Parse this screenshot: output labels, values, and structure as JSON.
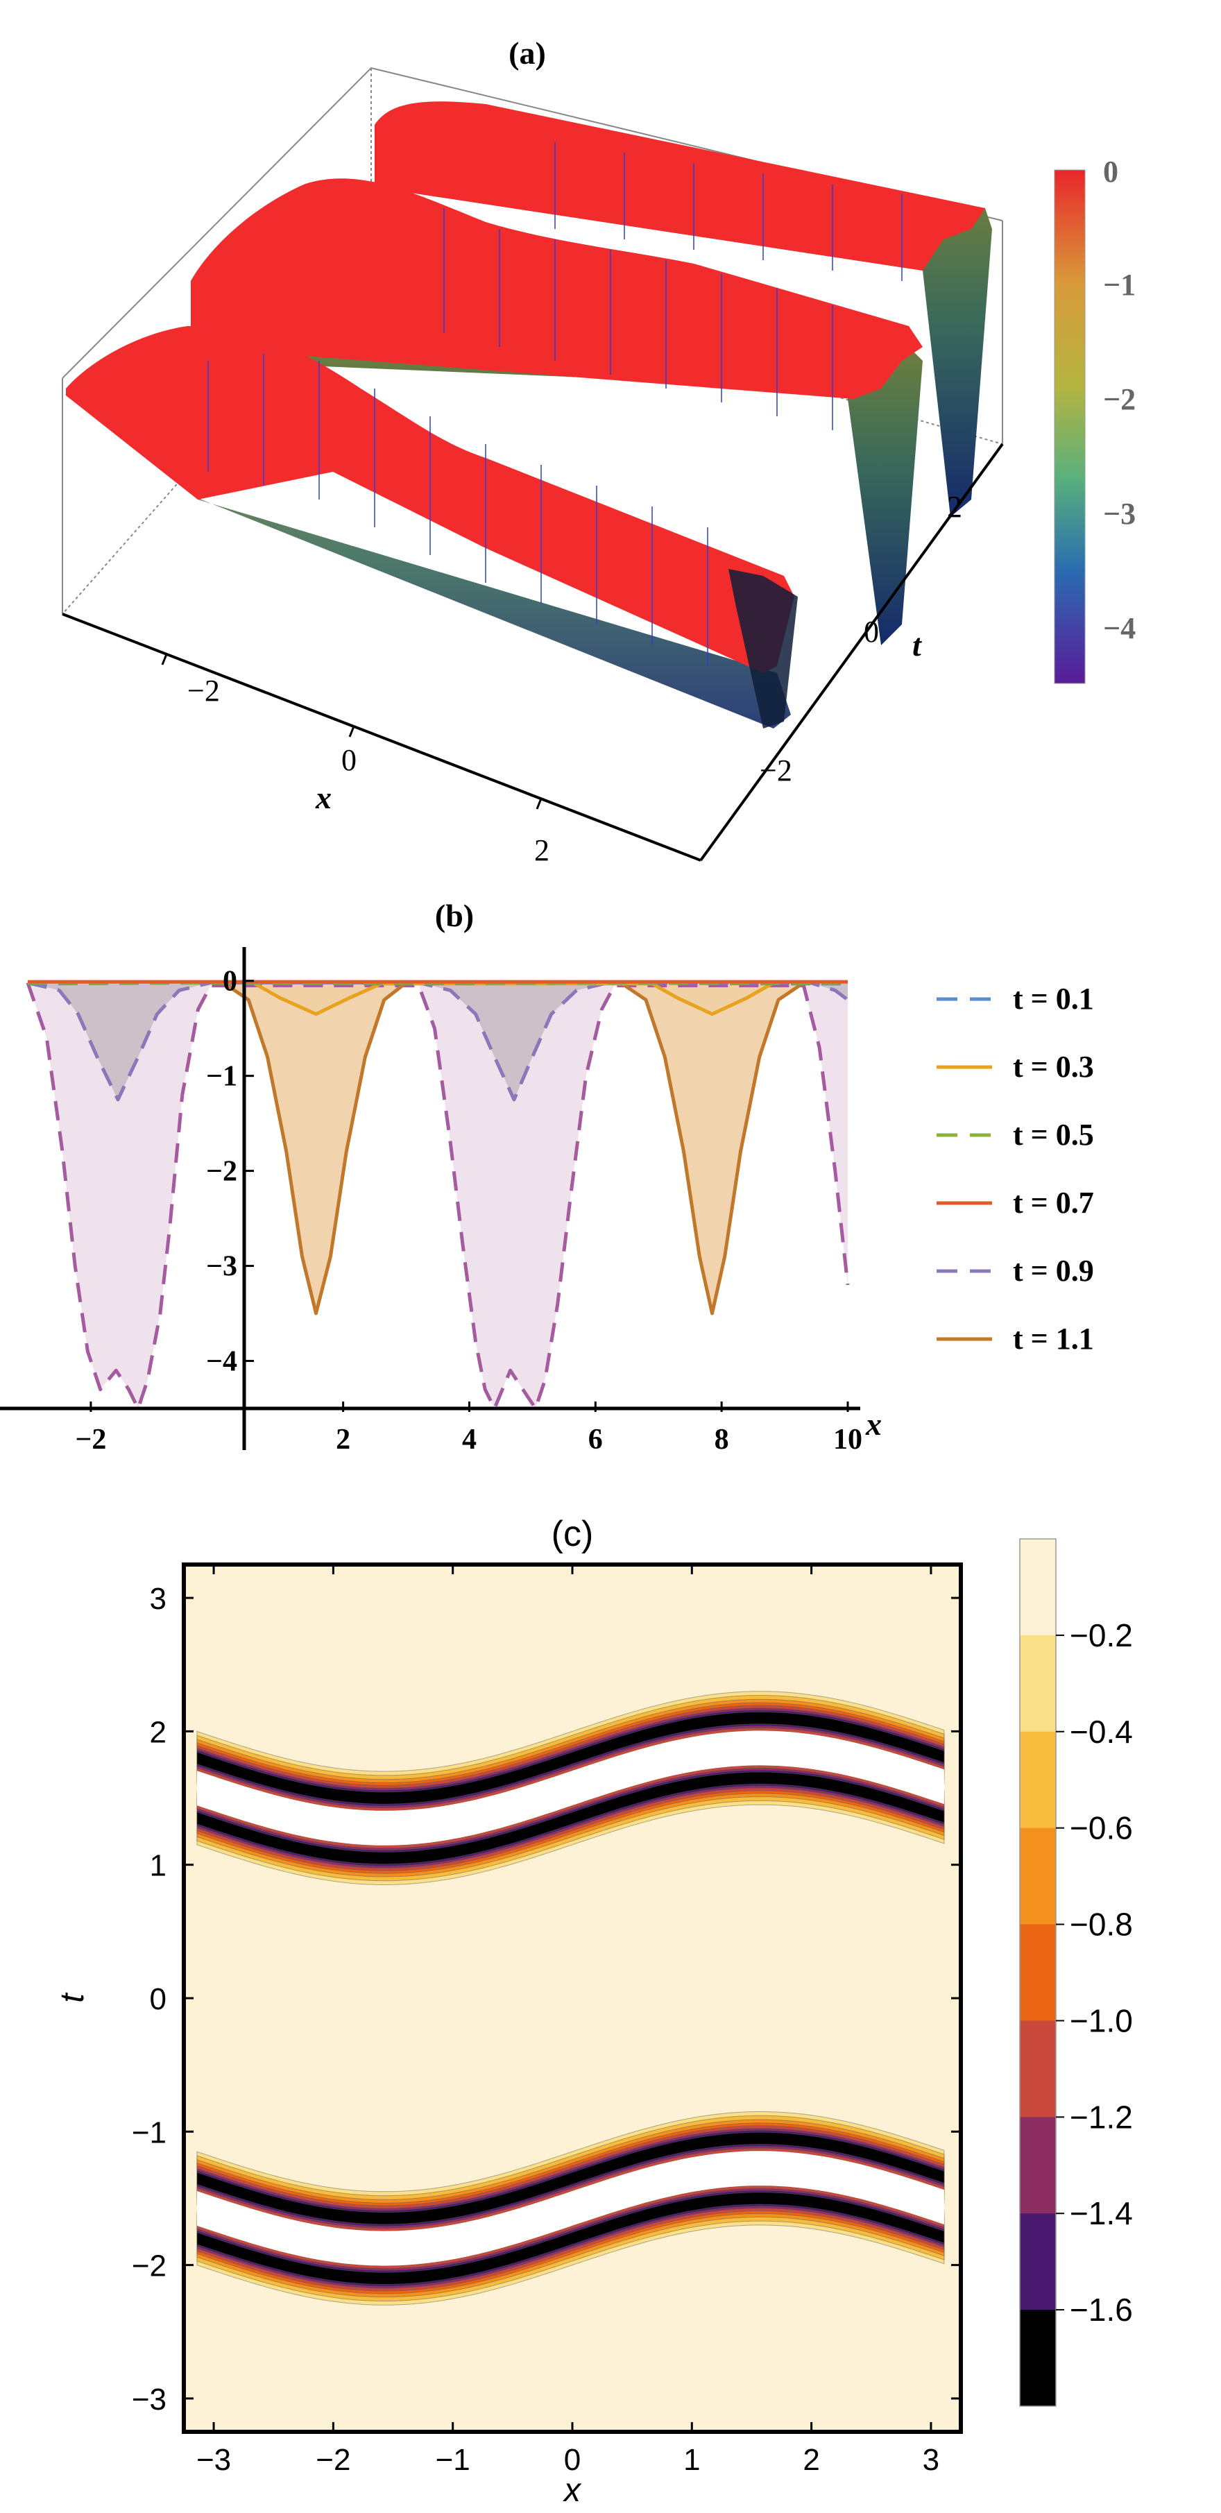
{
  "panels": {
    "a": {
      "label": "(a)",
      "xlabel": "x",
      "tlabel": "t",
      "x_ticks": [
        "−2",
        "0",
        "2"
      ],
      "t_ticks": [
        "2",
        "0",
        "−2"
      ],
      "colorbar_ticks": [
        "0",
        "−1",
        "−2",
        "−3",
        "−4"
      ]
    },
    "b": {
      "label": "(b)",
      "xlabel": "x"
    },
    "c": {
      "label": "(c)",
      "xlabel": "x",
      "ylabel": "t"
    }
  },
  "colors": {
    "surface_top": "#f22c2c",
    "surface_mid": "#7a7a32",
    "surface_low": "#1c6a6a",
    "t01": "#5b8ccc",
    "t03": "#e8a21e",
    "t05": "#8bb33c",
    "t07": "#e2572c",
    "t09": "#8a78bb",
    "t11": "#c2782a",
    "fill_orange": "#efcfa4",
    "fill_purple": "#ecdde9",
    "fill_grey": "#cabcc4",
    "dashed_magenta": "#a55b9f",
    "contour_bg": "#fdf2d5"
  },
  "chart_data": [
    {
      "type": "surface",
      "title": "(a)",
      "xlabel": "x",
      "ylabel": "t",
      "zlabel": "",
      "x_range": [
        -3.14,
        3.14
      ],
      "t_range": [
        -3.14,
        3.14
      ],
      "z_range": [
        -4.5,
        0
      ],
      "x_ticks": [
        -2,
        0,
        2
      ],
      "t_ticks": [
        -2,
        0,
        2
      ],
      "colorbar": {
        "ticks": [
          0,
          -1,
          -2,
          -3,
          -4
        ],
        "range": [
          -4.5,
          0
        ]
      }
    },
    {
      "type": "line",
      "title": "(b)",
      "xlabel": "x",
      "ylabel": "",
      "xlim": [
        -3.0,
        10.0
      ],
      "ylim": [
        -4.5,
        0.1
      ],
      "x_ticks": [
        -2,
        2,
        4,
        6,
        8,
        10
      ],
      "y_ticks": [
        0,
        -1,
        -2,
        -3,
        -4
      ],
      "legend": "right",
      "series": [
        {
          "name": "t = 0.1",
          "style": "dashed",
          "color": "#5b8ccc",
          "x": [
            -3,
            0,
            3,
            6,
            9,
            10
          ],
          "values": [
            -0.03,
            -0.02,
            -0.03,
            -0.02,
            -0.03,
            -0.03
          ]
        },
        {
          "name": "t = 0.3",
          "style": "solid",
          "color": "#e8a21e",
          "x": [
            0.6,
            1.0,
            1.57,
            2.1,
            2.6,
            6.9,
            7.3,
            7.85,
            8.4,
            8.8
          ],
          "values": [
            -0.03,
            -0.18,
            -0.35,
            -0.18,
            -0.03,
            -0.03,
            -0.18,
            -0.35,
            -0.18,
            -0.03
          ]
        },
        {
          "name": "t = 0.5",
          "style": "dashed",
          "color": "#8bb33c",
          "x": [
            -3,
            0,
            3,
            6,
            9,
            10
          ],
          "values": [
            -0.02,
            -0.02,
            -0.02,
            -0.02,
            -0.02,
            -0.02
          ]
        },
        {
          "name": "t = 0.7",
          "style": "solid",
          "color": "#e2572c",
          "x": [
            -3,
            0,
            3,
            6,
            9,
            10
          ],
          "values": [
            -0.01,
            -0.01,
            -0.01,
            -0.01,
            -0.01,
            -0.01
          ]
        },
        {
          "name": "t = 0.9",
          "style": "dashed",
          "color": "#8a78bb",
          "x": [
            -3.0,
            -2.5,
            -2.2,
            -1.9,
            -1.57,
            -1.25,
            -0.95,
            -0.6,
            -0.1,
            3.2,
            3.7,
            4.1,
            4.4,
            4.71,
            5.0,
            5.3,
            5.7,
            6.2,
            9.4,
            9.8,
            10.0
          ],
          "values": [
            -0.02,
            -0.1,
            -0.35,
            -0.8,
            -1.25,
            -0.8,
            -0.35,
            -0.1,
            -0.02,
            -0.02,
            -0.1,
            -0.35,
            -0.8,
            -1.25,
            -0.8,
            -0.35,
            -0.1,
            -0.02,
            -0.02,
            -0.1,
            -0.2
          ]
        },
        {
          "name": "t = 1.1",
          "style": "solid",
          "color": "#c2782a",
          "x": [
            0.1,
            0.5,
            0.8,
            1.1,
            1.35,
            1.57,
            1.8,
            2.05,
            2.35,
            2.65,
            3.0,
            6.4,
            6.8,
            7.1,
            7.4,
            7.65,
            7.85,
            8.05,
            8.3,
            8.6,
            8.9,
            9.3
          ],
          "values": [
            -0.02,
            -0.2,
            -0.8,
            -1.8,
            -2.9,
            -3.5,
            -2.9,
            -1.8,
            -0.8,
            -0.2,
            -0.02,
            -0.02,
            -0.2,
            -0.8,
            -1.8,
            -2.9,
            -3.5,
            -2.9,
            -1.8,
            -0.8,
            -0.2,
            -0.02
          ]
        },
        {
          "name": "",
          "style": "dashed",
          "color": "#a55b9f",
          "x": [
            -3.0,
            -2.7,
            -2.45,
            -2.25,
            -2.05,
            -1.85,
            -1.6,
            -1.4,
            -1.25,
            -1.1,
            -0.9,
            -0.75,
            -0.55,
            -0.3,
            -0.1,
            3.2,
            3.45,
            3.7,
            3.9,
            4.1,
            4.25,
            4.4,
            4.65,
            4.85,
            5.05,
            5.2,
            5.4,
            5.6,
            5.85,
            6.1,
            6.3,
            9.3,
            9.55,
            9.8,
            10.0
          ],
          "values": [
            -0.02,
            -0.6,
            -1.8,
            -3.0,
            -3.9,
            -4.3,
            -4.1,
            -4.3,
            -4.5,
            -4.2,
            -3.5,
            -2.6,
            -1.2,
            -0.3,
            -0.05,
            -0.05,
            -0.5,
            -1.7,
            -2.8,
            -3.8,
            -4.3,
            -4.5,
            -4.1,
            -4.3,
            -4.5,
            -4.2,
            -3.4,
            -2.3,
            -1.0,
            -0.3,
            -0.05,
            -0.05,
            -0.7,
            -2.0,
            -3.2
          ]
        }
      ]
    },
    {
      "type": "contour",
      "title": "(c)",
      "xlabel": "x",
      "ylabel": "t",
      "xlim": [
        -3.25,
        3.25
      ],
      "ylim": [
        -3.25,
        3.25
      ],
      "x_ticks": [
        -3,
        -2,
        -1,
        0,
        1,
        2,
        3
      ],
      "y_ticks": [
        3,
        2,
        1,
        0,
        -1,
        -2,
        -3
      ],
      "band_centers": [
        1.35,
        1.8,
        -1.35,
        -1.8
      ],
      "band_amplitude": 0.3,
      "colorbar": {
        "ticks": [
          "−0.2",
          "−0.4",
          "−0.6",
          "−0.8",
          "−1.0",
          "−1.2",
          "−1.4",
          "−1.6"
        ],
        "levels": [
          -0.1,
          -0.3,
          -0.5,
          -0.7,
          -0.9,
          -1.1,
          -1.3,
          -1.5,
          -1.7
        ],
        "colors": [
          "#fdf2d5",
          "#fbe08a",
          "#f7bc3e",
          "#f4911e",
          "#ea6514",
          "#c94a3c",
          "#8d2e62",
          "#4a1a70",
          "#000000"
        ]
      }
    }
  ]
}
